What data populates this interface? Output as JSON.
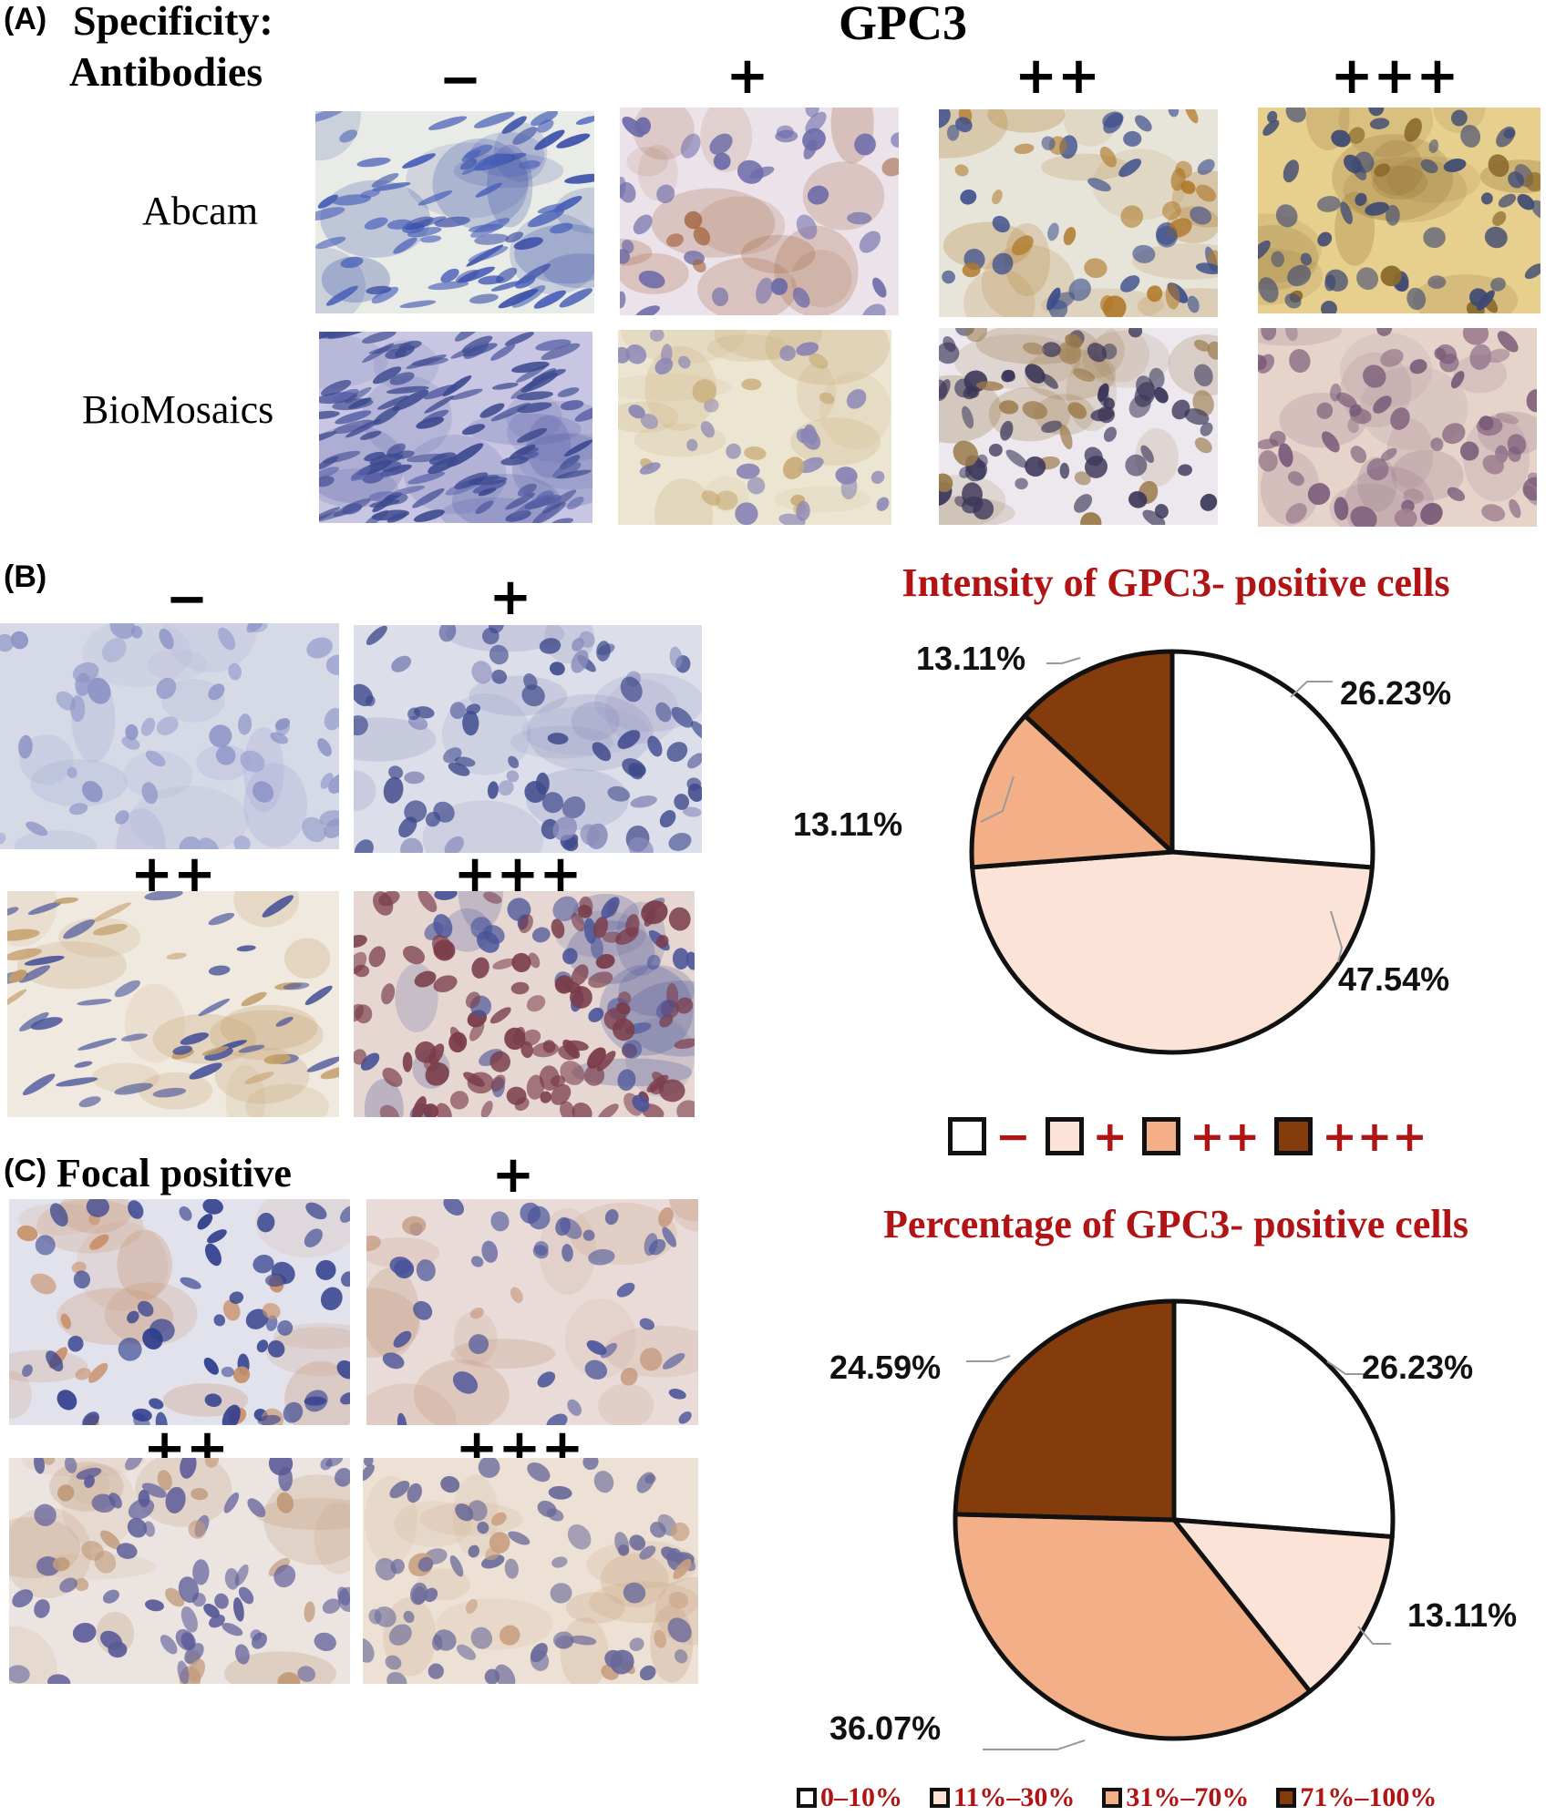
{
  "panel_a": {
    "label": "(A)",
    "specificity_label": "Specificity:",
    "antibodies_label": "Antibodies",
    "marker_title": "GPC3",
    "grades": [
      "−",
      "+",
      "++",
      "+++"
    ],
    "rows": [
      "Abcam",
      "BioMosaics"
    ]
  },
  "panel_b": {
    "label": "(B)",
    "grades": [
      "−",
      "+",
      "++",
      "+++"
    ]
  },
  "panel_c": {
    "label": "(C)",
    "focal_label": "Focal positive",
    "grades": [
      "+",
      "++",
      "+++"
    ]
  },
  "colors": {
    "white": "#ffffff",
    "light": "#fbe3d7",
    "medium": "#f3b088",
    "dark": "#843c0c",
    "title_red": "#b01414",
    "leader": "#9a9a9a"
  },
  "chart_data": [
    {
      "type": "pie",
      "title": "Intensity of GPC3- positive cells",
      "labels": [
        "−",
        "+",
        "++",
        "+++"
      ],
      "values": [
        26.23,
        47.54,
        13.11,
        13.11
      ],
      "value_labels": [
        "26.23%",
        "47.54%",
        "13.11%",
        "13.11%"
      ],
      "colors": [
        "#ffffff",
        "#fbe3d7",
        "#f3b088",
        "#843c0c"
      ],
      "legend_position": "below"
    },
    {
      "type": "pie",
      "title": "Percentage of GPC3- positive cells",
      "labels": [
        "0–10%",
        "11%–30%",
        "31%–70%",
        "71%–100%"
      ],
      "values": [
        26.23,
        13.11,
        36.07,
        24.59
      ],
      "value_labels": [
        "26.23%",
        "13.11%",
        "36.07%",
        "24.59%"
      ],
      "colors": [
        "#ffffff",
        "#fbe3d7",
        "#f3b088",
        "#843c0c"
      ],
      "legend_position": "bottom"
    }
  ]
}
